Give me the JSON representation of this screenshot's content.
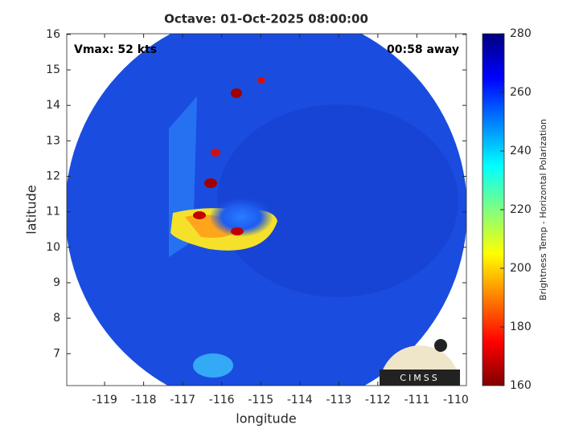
{
  "chart_data": {
    "type": "image",
    "title": "Octave: 01-Oct-2025 08:00:00",
    "x_label": "longitude",
    "y_label": "latitude",
    "xlim": [
      -119.97,
      -109.73
    ],
    "ylim": [
      6.1,
      16.02
    ],
    "xticks": [
      -119,
      -118,
      -117,
      -116,
      -115,
      -114,
      -113,
      -112,
      -111,
      -110
    ],
    "yticks": [
      7,
      8,
      9,
      10,
      11,
      12,
      13,
      14,
      15,
      16
    ],
    "annotations": [
      "Vmax: 52 kts",
      "00:58 away"
    ],
    "colorbar": {
      "label": "Brightness Temp - Horizontal Polarization",
      "lim": [
        160,
        280
      ],
      "ticks": [
        160,
        180,
        200,
        220,
        240,
        260,
        280
      ],
      "colormap": "jet",
      "reversed": true
    }
  },
  "logo": "CIMSS"
}
